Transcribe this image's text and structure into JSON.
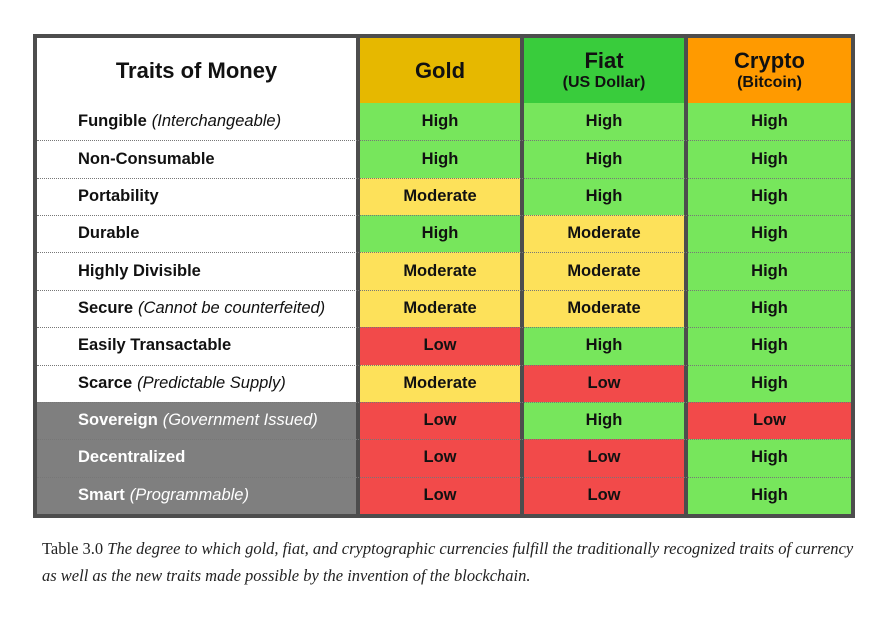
{
  "table": {
    "title": "Traits of Money",
    "columns": [
      {
        "name": "Gold",
        "sub": "",
        "color": "#e6b800"
      },
      {
        "name": "Fiat",
        "sub": "(US Dollar)",
        "color": "#39cc3c"
      },
      {
        "name": "Crypto",
        "sub": "(Bitcoin)",
        "color": "#ff9a00"
      }
    ],
    "level_colors": {
      "High": "#77e65c",
      "Moderate": "#fde15a",
      "Low": "#f24a4a"
    },
    "rows": [
      {
        "trait": "Fungible",
        "note": "(Interchangeable)",
        "group": "traditional",
        "values": [
          "High",
          "High",
          "High"
        ]
      },
      {
        "trait": "Non-Consumable",
        "note": "",
        "group": "traditional",
        "values": [
          "High",
          "High",
          "High"
        ]
      },
      {
        "trait": "Portability",
        "note": "",
        "group": "traditional",
        "values": [
          "Moderate",
          "High",
          "High"
        ]
      },
      {
        "trait": "Durable",
        "note": "",
        "group": "traditional",
        "values": [
          "High",
          "Moderate",
          "High"
        ]
      },
      {
        "trait": "Highly Divisible",
        "note": "",
        "group": "traditional",
        "values": [
          "Moderate",
          "Moderate",
          "High"
        ]
      },
      {
        "trait": "Secure",
        "note": "(Cannot be counterfeited)",
        "group": "traditional",
        "values": [
          "Moderate",
          "Moderate",
          "High"
        ]
      },
      {
        "trait": "Easily Transactable",
        "note": "",
        "group": "traditional",
        "values": [
          "Low",
          "High",
          "High"
        ]
      },
      {
        "trait": "Scarce",
        "note": "(Predictable Supply)",
        "group": "traditional",
        "values": [
          "Moderate",
          "Low",
          "High"
        ]
      },
      {
        "trait": "Sovereign",
        "note": "(Government Issued)",
        "group": "new",
        "values": [
          "Low",
          "High",
          "Low"
        ]
      },
      {
        "trait": "Decentralized",
        "note": "",
        "group": "new",
        "values": [
          "Low",
          "Low",
          "High"
        ]
      },
      {
        "trait": "Smart",
        "note": "(Programmable)",
        "group": "new",
        "values": [
          "Low",
          "Low",
          "High"
        ]
      }
    ]
  },
  "caption": {
    "label": "Table 3.0",
    "text": "The degree to which gold, fiat, and cryptographic currencies fulfill the traditionally recognized traits of currency as well as the new traits made possible by the invention of the blockchain."
  }
}
